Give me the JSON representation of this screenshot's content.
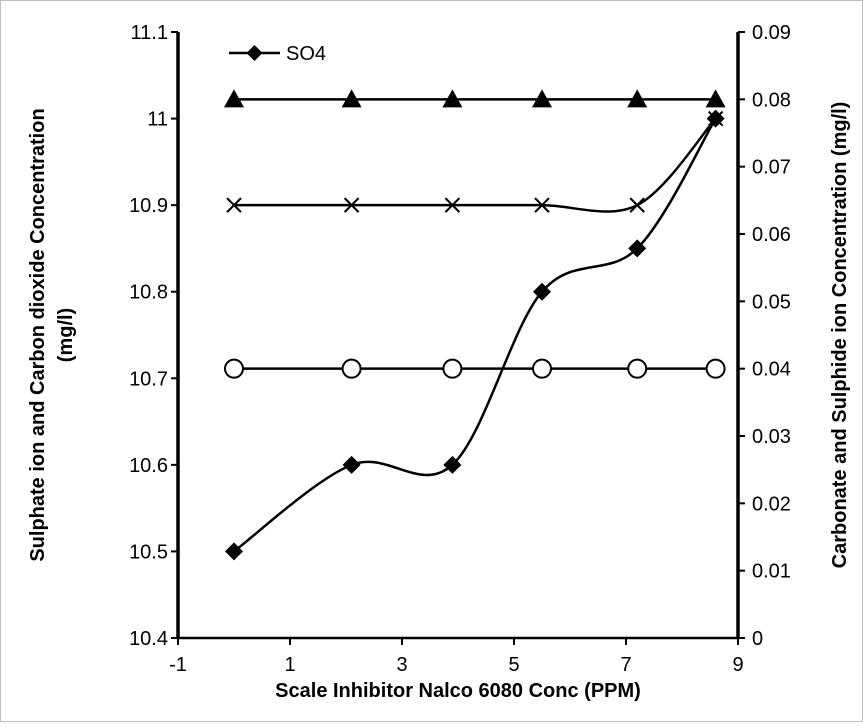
{
  "chart_data": {
    "type": "scatter",
    "title": "",
    "xlabel": "Scale Inhibitor Nalco 6080 Conc (PPM)",
    "ylabel": "Sulphate ion and Carbon dioxide Concentration (mg/l)",
    "y2label": "Carbonate and Sulphide ion Concentration (mg/l)",
    "xlim": [
      -1,
      9
    ],
    "ylim": [
      10.4,
      11.1
    ],
    "y2lim": [
      0,
      0.09
    ],
    "x_ticks": [
      "-1",
      "1",
      "3",
      "5",
      "7",
      "9"
    ],
    "y_ticks": [
      "10.4",
      "10.5",
      "10.6",
      "10.7",
      "10.8",
      "10.9",
      "11",
      "11.1"
    ],
    "y2_ticks": [
      "0",
      "0.01",
      "0.02",
      "0.03",
      "0.04",
      "0.05",
      "0.06",
      "0.07",
      "0.08",
      "0.09"
    ],
    "grid": false,
    "legend": {
      "position": "top-left",
      "entries": [
        "SO4"
      ]
    },
    "series": [
      {
        "name": "SO4",
        "axis": "left",
        "marker": "diamond",
        "smooth": true,
        "x": [
          0,
          2.1,
          3.9,
          5.5,
          7.2,
          8.6
        ],
        "y": [
          10.5,
          10.6,
          10.6,
          10.8,
          10.85,
          11.0
        ]
      },
      {
        "axis": "left",
        "marker": "x",
        "smooth": true,
        "x": [
          0,
          2.1,
          3.9,
          5.5,
          7.2,
          8.6
        ],
        "y": [
          10.9,
          10.9,
          10.9,
          10.9,
          10.9,
          11.0
        ]
      },
      {
        "axis": "right",
        "marker": "triangle",
        "smooth": false,
        "x": [
          0,
          2.1,
          3.9,
          5.5,
          7.2,
          8.6
        ],
        "y": [
          0.08,
          0.08,
          0.08,
          0.08,
          0.08,
          0.08
        ]
      },
      {
        "axis": "right",
        "marker": "circle",
        "smooth": false,
        "x": [
          0,
          2.1,
          3.9,
          5.5,
          7.2,
          8.6
        ],
        "y": [
          0.04,
          0.04,
          0.04,
          0.04,
          0.04,
          0.04
        ]
      }
    ]
  }
}
